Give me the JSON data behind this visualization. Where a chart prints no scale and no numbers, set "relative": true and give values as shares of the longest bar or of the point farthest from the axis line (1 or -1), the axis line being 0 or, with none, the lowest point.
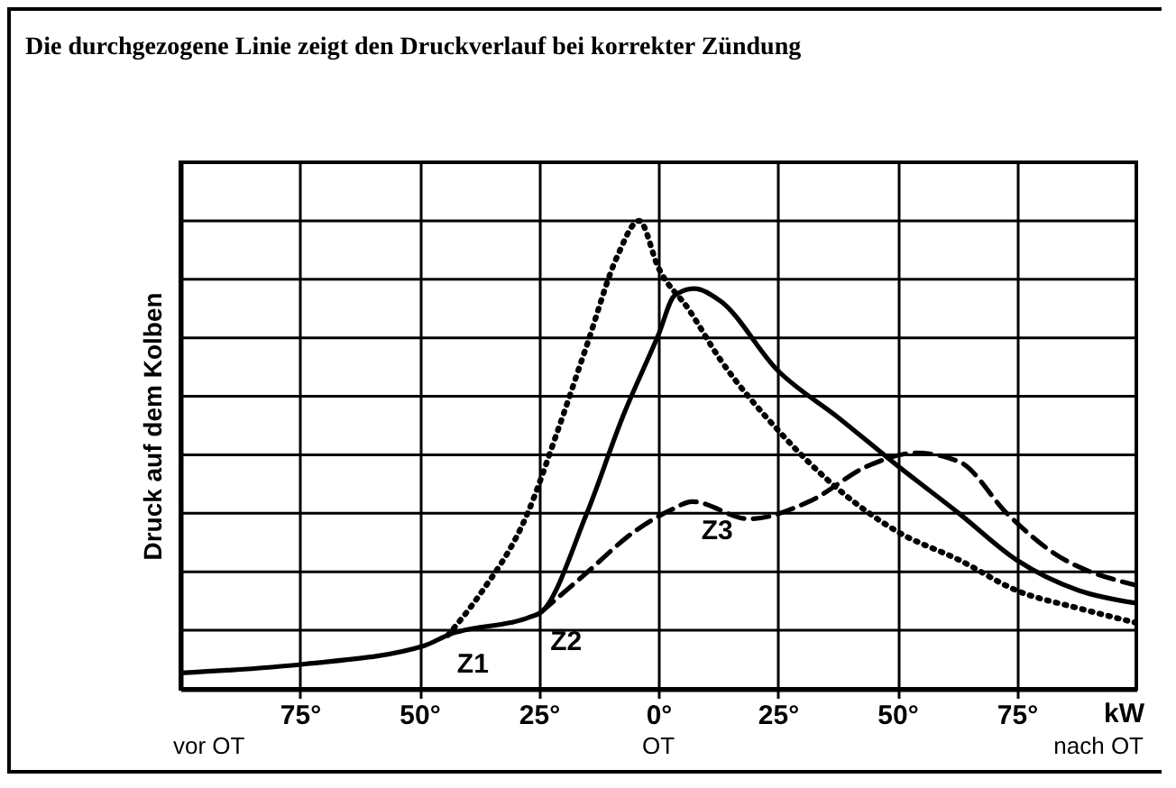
{
  "chart_data": {
    "type": "line",
    "title": "Die durchgezogene Linie zeigt den Druckverlauf bei korrekter Zündung",
    "ylabel": "Druck auf dem Kolben",
    "xlabel": "kW",
    "relative": true,
    "xlim": [
      -100,
      100
    ],
    "xticks": [
      {
        "value": -75,
        "label": "75°"
      },
      {
        "value": -50,
        "label": "50°"
      },
      {
        "value": -25,
        "label": "25°"
      },
      {
        "value": 0,
        "label": "0°"
      },
      {
        "value": 25,
        "label": "25°"
      },
      {
        "value": 50,
        "label": "50°"
      },
      {
        "value": 75,
        "label": "75°"
      }
    ],
    "grid": true,
    "tick_labels": "x",
    "series": [
      {
        "color": "#000000",
        "line_style": "solid",
        "x": [
          -100,
          -74,
          -49,
          -44,
          -27,
          -24.5,
          -15,
          -7.5,
          0,
          3.4,
          7.5,
          12.8,
          25,
          37.6,
          50,
          63,
          75,
          88,
          100
        ],
        "values": [
          0.034,
          0.053,
          0.092,
          0.115,
          0.153,
          0.164,
          0.374,
          0.58,
          0.756,
          0.84,
          0.855,
          0.83,
          0.68,
          0.58,
          0.477,
          0.374,
          0.275,
          0.21,
          0.183
        ]
      },
      {
        "color": "#000000",
        "line_style": "dotted",
        "x": [
          -44,
          -37.6,
          -27.4,
          -21,
          -15,
          -8.6,
          -4,
          0,
          6.4,
          12.8,
          25,
          37.6,
          50,
          63,
          75,
          88,
          100
        ],
        "values": [
          0.115,
          0.198,
          0.374,
          0.553,
          0.733,
          0.924,
          1,
          0.9,
          0.81,
          0.706,
          0.553,
          0.427,
          0.336,
          0.275,
          0.21,
          0.172,
          0.141
        ]
      },
      {
        "color": "#000000",
        "line_style": "dashed",
        "x": [
          -24.5,
          -15,
          -5,
          2.6,
          7.1,
          19,
          31.5,
          44,
          54,
          63,
          73,
          81.6,
          100
        ],
        "values": [
          0.164,
          0.248,
          0.336,
          0.382,
          0.4,
          0.363,
          0.4,
          0.477,
          0.504,
          0.485,
          0.374,
          0.298,
          0.221
        ]
      }
    ],
    "annotations": [
      {
        "text": "Z1",
        "x": -44,
        "y": 0.115
      },
      {
        "text": "Z2",
        "x": -24.5,
        "y": 0.164
      },
      {
        "text": "Z3",
        "x": 7.1,
        "y": 0.4
      },
      "vor OT",
      "OT",
      "nach OT"
    ]
  }
}
